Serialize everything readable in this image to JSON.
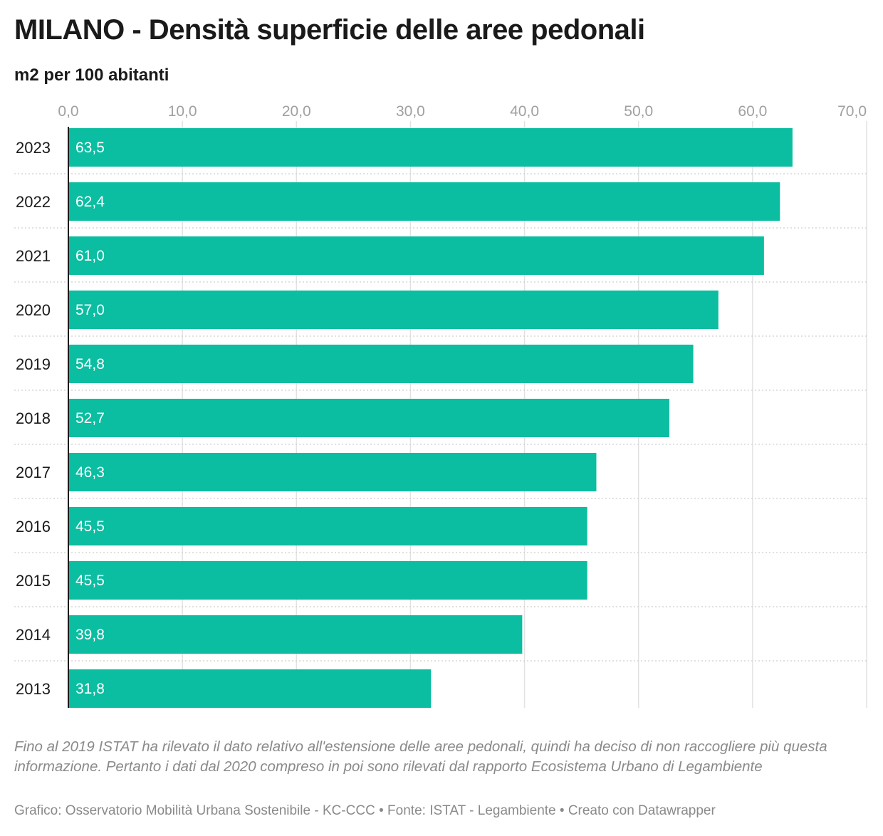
{
  "title": "MILANO - Densità superficie delle aree pedonali",
  "subtitle": "m2 per 100 abitanti",
  "note": "Fino al 2019 ISTAT ha rilevato il dato relativo all'estensione delle aree pedonali, quindi ha deciso di non raccogliere più questa informazione. Pertanto i dati dal 2020 compreso in poi sono rilevati dal rapporto Ecosistema Urbano di Legambiente",
  "credits": "Grafico: Osservatorio Mobilità Urbana Sostenibile - KC-CCC • Fonte: ISTAT - Legambiente • Creato con Datawrapper",
  "colors": {
    "bar": "#0bbda1",
    "grid": "#e2e2e2",
    "axis": "#1a1a1a"
  },
  "chart_data": {
    "type": "bar",
    "orientation": "horizontal",
    "title": "MILANO - Densità superficie delle aree pedonali",
    "subtitle": "m2 per 100 abitanti",
    "categories": [
      "2023",
      "2022",
      "2021",
      "2020",
      "2019",
      "2018",
      "2017",
      "2016",
      "2015",
      "2014",
      "2013"
    ],
    "values": [
      63.5,
      62.4,
      61.0,
      57.0,
      54.8,
      52.7,
      46.3,
      45.5,
      45.5,
      39.8,
      31.8
    ],
    "value_labels": [
      "63,5",
      "62,4",
      "61,0",
      "57,0",
      "54,8",
      "52,7",
      "46,3",
      "45,5",
      "45,5",
      "39,8",
      "31,8"
    ],
    "xlim": [
      0,
      70
    ],
    "x_ticks": [
      0,
      10,
      20,
      30,
      40,
      50,
      60,
      70
    ],
    "x_tick_labels": [
      "0,0",
      "10,0",
      "20,0",
      "30,0",
      "40,0",
      "50,0",
      "60,0",
      "70,0"
    ],
    "x_axis_position": "top",
    "grid": true,
    "legend": "none"
  }
}
